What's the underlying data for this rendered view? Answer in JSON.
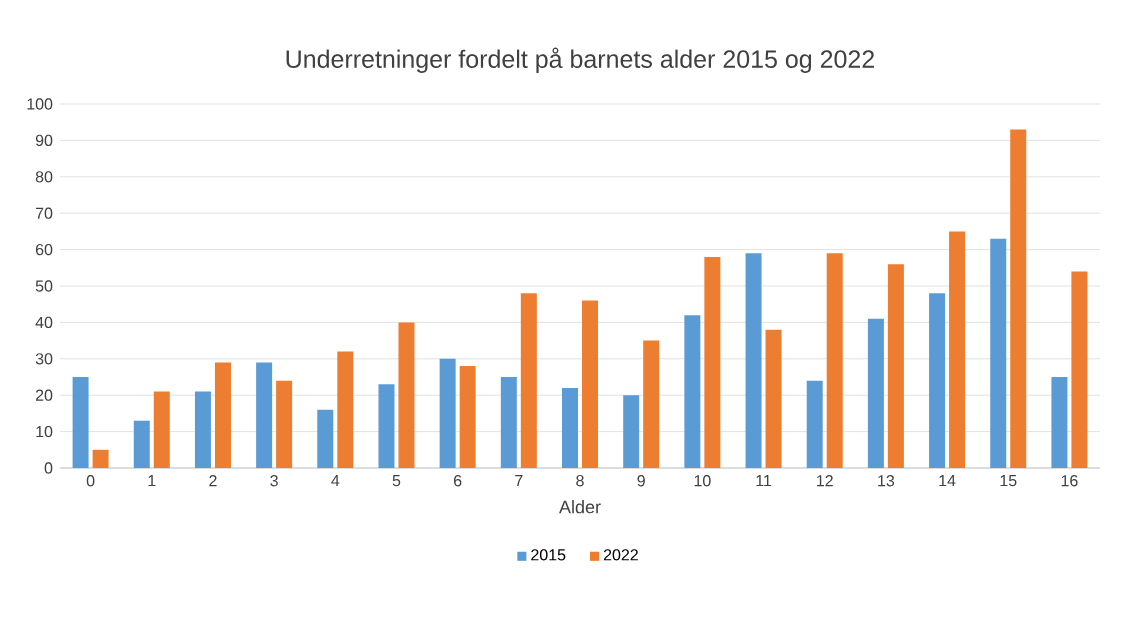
{
  "chart_data": {
    "type": "bar",
    "title": "Underretninger fordelt på barnets alder 2015 og 2022",
    "xlabel": "Alder",
    "categories": [
      "0",
      "1",
      "2",
      "3",
      "4",
      "5",
      "6",
      "7",
      "8",
      "9",
      "10",
      "11",
      "12",
      "13",
      "14",
      "15",
      "16"
    ],
    "series": [
      {
        "name": "2015",
        "color": "#5b9bd5",
        "values": [
          25,
          13,
          21,
          29,
          16,
          23,
          30,
          25,
          22,
          20,
          42,
          59,
          24,
          41,
          48,
          63,
          25
        ]
      },
      {
        "name": "2022",
        "color": "#ed7d31",
        "values": [
          5,
          21,
          29,
          24,
          32,
          40,
          28,
          48,
          46,
          35,
          58,
          38,
          59,
          56,
          65,
          93,
          54
        ]
      }
    ],
    "ylim": [
      0,
      100
    ],
    "yticks": [
      0,
      10,
      20,
      30,
      40,
      50,
      60,
      70,
      80,
      90,
      100
    ],
    "grid": "y",
    "legend": "bottom"
  }
}
